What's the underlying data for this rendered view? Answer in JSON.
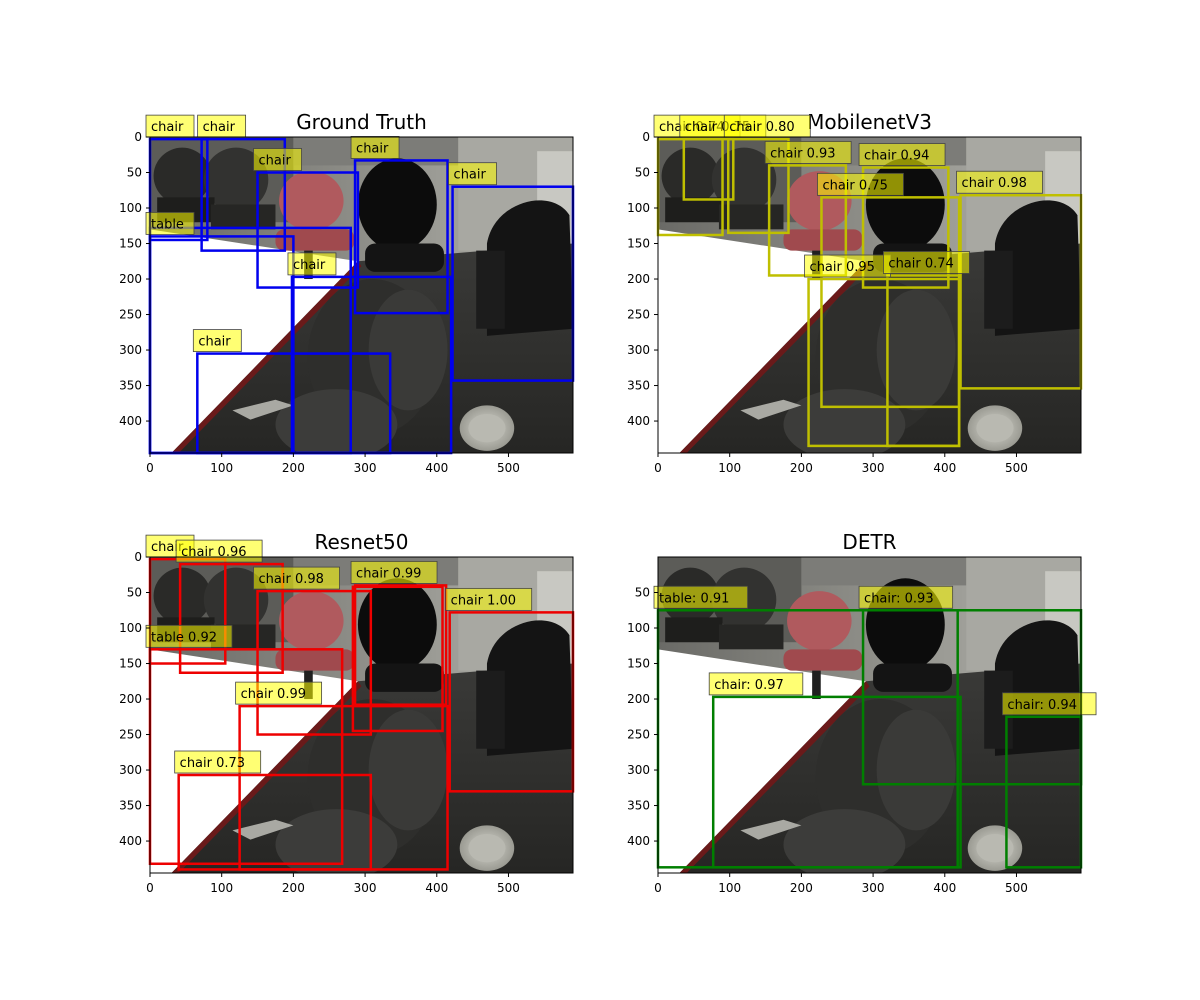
{
  "figure": {
    "scene": "office-room-with-chairs",
    "panels": [
      {
        "id": "ground-truth",
        "title": "Ground Truth",
        "box_color": "#0000ee",
        "xticks": [
          "0",
          "100",
          "200",
          "300",
          "400",
          "500"
        ],
        "yticks": [
          "0",
          "50",
          "100",
          "150",
          "200",
          "250",
          "300",
          "350",
          "400"
        ],
        "detections": [
          {
            "label": "chair",
            "x1": 0,
            "y1": 3,
            "x2": 80,
            "y2": 145
          },
          {
            "label": "chair",
            "x1": 72,
            "y1": 3,
            "x2": 188,
            "y2": 160
          },
          {
            "label": "chair",
            "x1": 150,
            "y1": 50,
            "x2": 290,
            "y2": 212
          },
          {
            "label": "chair",
            "x1": 286,
            "y1": 33,
            "x2": 415,
            "y2": 248
          },
          {
            "label": "chair",
            "x1": 422,
            "y1": 70,
            "x2": 590,
            "y2": 343
          },
          {
            "label": "table",
            "x1": 0,
            "y1": 140,
            "x2": 200,
            "y2": 445
          },
          {
            "label": "chair",
            "x1": 198,
            "y1": 197,
            "x2": 420,
            "y2": 445
          },
          {
            "label": "chair",
            "x1": 66,
            "y1": 305,
            "x2": 335,
            "y2": 445
          },
          {
            "label": "",
            "x1": 0,
            "y1": 128,
            "x2": 280,
            "y2": 445
          }
        ]
      },
      {
        "id": "mobilenetv3",
        "title": "MobilenetV3",
        "box_color": "#bfbf00",
        "xticks": [
          "0",
          "100",
          "200",
          "300",
          "400",
          "500"
        ],
        "yticks": [
          "0",
          "50",
          "100",
          "150",
          "200",
          "250",
          "300",
          "350",
          "400"
        ],
        "detections": [
          {
            "label": "chair 0.74",
            "x1": 0,
            "y1": 3,
            "x2": 90,
            "y2": 138
          },
          {
            "label": "chair 0.75",
            "x1": 36,
            "y1": 3,
            "x2": 105,
            "y2": 88
          },
          {
            "label": "chair 0.80",
            "x1": 98,
            "y1": 3,
            "x2": 182,
            "y2": 135
          },
          {
            "label": "chair 0.93",
            "x1": 155,
            "y1": 40,
            "x2": 262,
            "y2": 195
          },
          {
            "label": "chair 0.94",
            "x1": 286,
            "y1": 43,
            "x2": 405,
            "y2": 212
          },
          {
            "label": "chair 0.75",
            "x1": 228,
            "y1": 85,
            "x2": 420,
            "y2": 380
          },
          {
            "label": "chair 0.98",
            "x1": 422,
            "y1": 82,
            "x2": 590,
            "y2": 354
          },
          {
            "label": "chair 0.95",
            "x1": 210,
            "y1": 200,
            "x2": 420,
            "y2": 435
          },
          {
            "label": "chair 0.74",
            "x1": 320,
            "y1": 195,
            "x2": 420,
            "y2": 435
          }
        ]
      },
      {
        "id": "resnet50",
        "title": "Resnet50",
        "box_color": "#ee0000",
        "xticks": [
          "0",
          "100",
          "200",
          "300",
          "400",
          "500"
        ],
        "yticks": [
          "0",
          "50",
          "100",
          "150",
          "200",
          "250",
          "300",
          "350",
          "400"
        ],
        "detections": [
          {
            "label": "chair",
            "x1": 0,
            "y1": 3,
            "x2": 105,
            "y2": 150
          },
          {
            "label": "chair 0.96",
            "x1": 42,
            "y1": 10,
            "x2": 185,
            "y2": 163
          },
          {
            "label": "chair 0.98",
            "x1": 150,
            "y1": 48,
            "x2": 308,
            "y2": 250
          },
          {
            "label": "chair 0.99",
            "x1": 286,
            "y1": 40,
            "x2": 413,
            "y2": 208
          },
          {
            "label": "chair 1.00",
            "x1": 418,
            "y1": 78,
            "x2": 590,
            "y2": 330
          },
          {
            "label": "table 0.92",
            "x1": 0,
            "y1": 130,
            "x2": 268,
            "y2": 432
          },
          {
            "label": "chair 0.99",
            "x1": 125,
            "y1": 210,
            "x2": 415,
            "y2": 440
          },
          {
            "label": "chair 0.73",
            "x1": 40,
            "y1": 307,
            "x2": 308,
            "y2": 440
          },
          {
            "label": "",
            "x1": 283,
            "y1": 42,
            "x2": 408,
            "y2": 245
          }
        ]
      },
      {
        "id": "detr",
        "title": "DETR",
        "box_color": "#007f00",
        "xticks": [
          "0",
          "100",
          "200",
          "300",
          "400",
          "500"
        ],
        "yticks": [
          "50",
          "100",
          "150",
          "200",
          "250",
          "300",
          "350",
          "400"
        ],
        "detections": [
          {
            "label": "table: 0.91",
            "x1": 0,
            "y1": 75,
            "x2": 418,
            "y2": 437
          },
          {
            "label": "chair: 0.93",
            "x1": 286,
            "y1": 75,
            "x2": 590,
            "y2": 320
          },
          {
            "label": "chair: 0.97",
            "x1": 77,
            "y1": 197,
            "x2": 422,
            "y2": 437
          },
          {
            "label": "chair: 0.94",
            "x1": 486,
            "y1": 225,
            "x2": 590,
            "y2": 437
          }
        ]
      }
    ]
  }
}
